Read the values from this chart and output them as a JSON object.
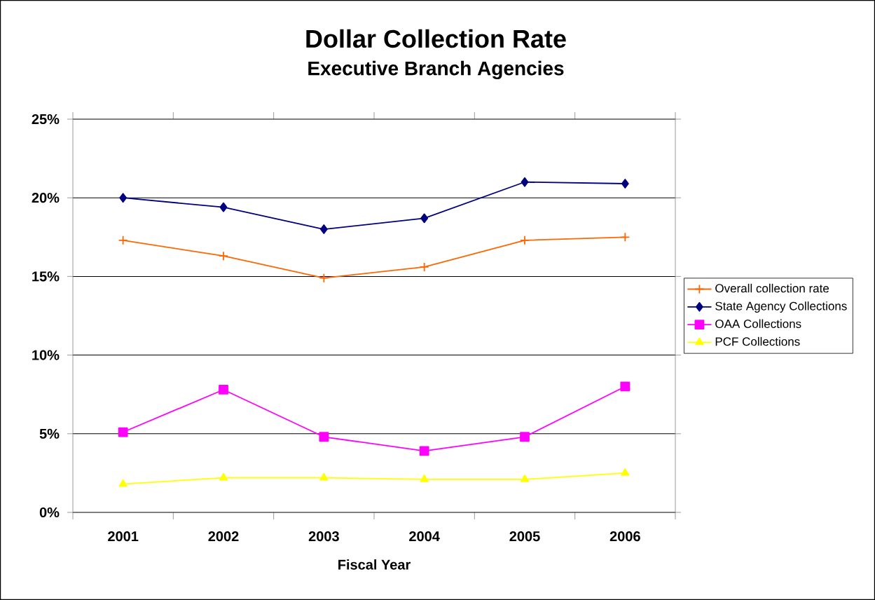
{
  "chart_data": {
    "type": "line",
    "title": "Dollar Collection Rate",
    "subtitle": "Executive Branch Agencies",
    "xlabel": "Fiscal Year",
    "categories": [
      "2001",
      "2002",
      "2003",
      "2004",
      "2005",
      "2006"
    ],
    "series": [
      {
        "name": "Overall collection rate",
        "color": "#ff6600",
        "marker": "cross",
        "values": [
          17.3,
          16.3,
          14.9,
          15.6,
          17.3,
          17.5
        ]
      },
      {
        "name": "State Agency Collections",
        "color": "#000080",
        "marker": "diamond",
        "values": [
          20.0,
          19.4,
          18.0,
          18.7,
          21.0,
          20.9
        ]
      },
      {
        "name": "OAA Collections",
        "color": "#ff00ff",
        "marker": "square",
        "values": [
          5.1,
          7.8,
          4.8,
          3.9,
          4.8,
          8.0
        ]
      },
      {
        "name": "PCF Collections",
        "color": "#ffff00",
        "marker": "triangle",
        "values": [
          1.8,
          2.2,
          2.2,
          2.1,
          2.1,
          2.5
        ]
      }
    ],
    "ylim": [
      0,
      25
    ],
    "yticks": [
      {
        "value": 0,
        "label": "0%"
      },
      {
        "value": 5,
        "label": "5%"
      },
      {
        "value": 10,
        "label": "10%"
      },
      {
        "value": 15,
        "label": "15%"
      },
      {
        "value": 20,
        "label": "20%"
      },
      {
        "value": 25,
        "label": "25%"
      }
    ],
    "grid": "y",
    "legend": "right",
    "line_style": "solid"
  }
}
